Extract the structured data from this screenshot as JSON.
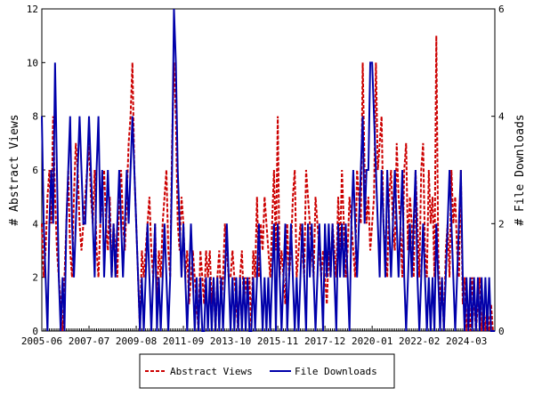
{
  "chart_data": {
    "type": "line",
    "categories": [
      "2005-06",
      null,
      null,
      null,
      null,
      null,
      null,
      null,
      null,
      null,
      null,
      null,
      null,
      null,
      null,
      null,
      null,
      null,
      null,
      null,
      null,
      null,
      null,
      null,
      null,
      "2007-07",
      null,
      null,
      null,
      null,
      null,
      null,
      null,
      null,
      null,
      null,
      null,
      null,
      null,
      null,
      null,
      null,
      null,
      null,
      null,
      null,
      null,
      null,
      null,
      null,
      "2009-08",
      null,
      null,
      null,
      null,
      null,
      null,
      null,
      null,
      null,
      null,
      null,
      null,
      null,
      null,
      null,
      null,
      null,
      null,
      null,
      null,
      null,
      null,
      null,
      null,
      "2011-09",
      null,
      null,
      null,
      null,
      null,
      null,
      null,
      null,
      null,
      null,
      null,
      null,
      null,
      null,
      null,
      null,
      null,
      null,
      null,
      null,
      null,
      null,
      null,
      null,
      "2013-10",
      null,
      null,
      null,
      null,
      null,
      null,
      null,
      null,
      null,
      null,
      null,
      null,
      null,
      null,
      null,
      null,
      null,
      null,
      null,
      null,
      null,
      null,
      null,
      null,
      "2015-11",
      null,
      null,
      null,
      null,
      null,
      null,
      null,
      null,
      null,
      null,
      null,
      null,
      null,
      null,
      null,
      null,
      null,
      null,
      null,
      null,
      null,
      null,
      null,
      null,
      "2017-12",
      null,
      null,
      null,
      null,
      null,
      null,
      null,
      null,
      null,
      null,
      null,
      null,
      null,
      null,
      null,
      null,
      null,
      null,
      null,
      null,
      null,
      null,
      null,
      null,
      "2020-01",
      null,
      null,
      null,
      null,
      null,
      null,
      null,
      null,
      null,
      null,
      null,
      null,
      null,
      null,
      null,
      null,
      null,
      null,
      null,
      null,
      null,
      null,
      null,
      null,
      "2022-02",
      null,
      null,
      null,
      null,
      null,
      null,
      null,
      null,
      null,
      null,
      null,
      null,
      null,
      null,
      null,
      null,
      null,
      null,
      null,
      null,
      null,
      null,
      null,
      null,
      "2024-03",
      null,
      null,
      null,
      null,
      null,
      null,
      null,
      null,
      null,
      null,
      null,
      null,
      null,
      null,
      null
    ],
    "series": [
      {
        "name": "Abstract Views",
        "color": "#cc0000",
        "dash": true,
        "values": [
          4,
          2,
          3,
          5,
          6,
          4,
          8,
          5,
          3,
          2,
          1,
          0,
          2,
          4,
          6,
          3,
          2,
          5,
          7,
          6,
          4,
          3,
          4,
          5,
          6,
          7,
          5,
          4,
          6,
          3,
          2,
          4,
          5,
          6,
          4,
          3,
          5,
          2,
          4,
          3,
          2,
          5,
          6,
          4,
          3,
          5,
          7,
          8,
          10,
          6,
          4,
          2,
          0,
          3,
          2,
          3,
          4,
          5,
          3,
          2,
          4,
          1,
          3,
          2,
          4,
          5,
          6,
          3,
          2,
          7,
          10,
          8,
          4,
          3,
          5,
          4,
          2,
          3,
          1,
          2,
          3,
          2,
          1,
          0,
          3,
          2,
          1,
          3,
          2,
          3,
          1,
          2,
          0,
          2,
          3,
          1,
          2,
          4,
          3,
          2,
          2,
          3,
          2,
          1,
          0,
          2,
          3,
          1,
          2,
          1,
          2,
          0,
          3,
          2,
          5,
          2,
          4,
          3,
          5,
          4,
          3,
          2,
          4,
          6,
          3,
          8,
          2,
          3,
          2,
          1,
          4,
          2,
          3,
          5,
          6,
          2,
          3,
          4,
          3,
          2,
          6,
          5,
          4,
          3,
          2,
          5,
          4,
          3,
          2,
          3,
          2,
          1,
          3,
          2,
          4,
          3,
          2,
          5,
          3,
          6,
          4,
          2,
          3,
          5,
          4,
          3,
          2,
          6,
          5,
          4,
          10,
          6,
          4,
          5,
          3,
          4,
          5,
          10,
          6,
          7,
          8,
          4,
          3,
          2,
          5,
          6,
          4,
          3,
          7,
          5,
          4,
          2,
          6,
          7,
          3,
          5,
          4,
          2,
          6,
          4,
          2,
          6,
          7,
          3,
          2,
          6,
          4,
          5,
          2,
          11,
          3,
          1,
          2,
          0,
          3,
          4,
          2,
          6,
          4,
          5,
          3,
          2,
          6,
          1,
          2,
          0,
          1,
          0,
          2,
          1,
          0,
          1,
          2,
          0,
          1,
          0,
          1,
          0,
          1,
          0,
          0
        ]
      },
      {
        "name": "File Downloads",
        "color": "#0000aa",
        "axis": "y2",
        "values": [
          4,
          2,
          1,
          0,
          2,
          3,
          2,
          5,
          3,
          1,
          0,
          1,
          0,
          2,
          3,
          4,
          2,
          1,
          2,
          3,
          4,
          3,
          2,
          2,
          3,
          4,
          3,
          2,
          1,
          3,
          4,
          2,
          3,
          1,
          2,
          3,
          2,
          1,
          2,
          1,
          2,
          3,
          2,
          1,
          2,
          3,
          2,
          3,
          4,
          3,
          2,
          1,
          0,
          1,
          0,
          1,
          2,
          1,
          0,
          1,
          2,
          0,
          1,
          0,
          1,
          2,
          1,
          0,
          1,
          3,
          6,
          5,
          3,
          2,
          1,
          2,
          1,
          0,
          1,
          2,
          1,
          0,
          1,
          0,
          1,
          0,
          0,
          1,
          0,
          1,
          0,
          1,
          0,
          1,
          0,
          1,
          0,
          1,
          2,
          1,
          0,
          1,
          0,
          1,
          0,
          1,
          0,
          1,
          0,
          1,
          0,
          0,
          1,
          0,
          1,
          2,
          1,
          0,
          1,
          0,
          1,
          0,
          1,
          2,
          0,
          2,
          1,
          0,
          1,
          2,
          0,
          1,
          2,
          1,
          0,
          1,
          0,
          1,
          2,
          1,
          0,
          2,
          1,
          2,
          1,
          0,
          1,
          2,
          1,
          0,
          2,
          1,
          2,
          1,
          2,
          1,
          0,
          2,
          1,
          2,
          1,
          2,
          1,
          0,
          2,
          3,
          2,
          1,
          2,
          3,
          4,
          2,
          3,
          3,
          5,
          5,
          4,
          3,
          2,
          1,
          3,
          2,
          1,
          3,
          2,
          1,
          2,
          3,
          2,
          1,
          2,
          3,
          1,
          0,
          1,
          2,
          1,
          2,
          3,
          1,
          0,
          1,
          2,
          1,
          0,
          1,
          0,
          1,
          0,
          2,
          1,
          0,
          1,
          0,
          1,
          2,
          3,
          2,
          1,
          0,
          1,
          2,
          3,
          1,
          0,
          1,
          0,
          1,
          0,
          1,
          0,
          1,
          0,
          1,
          0,
          1,
          0,
          1,
          0,
          0,
          0
        ]
      }
    ],
    "ylabel": "# Abstract Views",
    "y2label": "# File Downloads",
    "ylim": [
      0,
      12
    ],
    "yticks": [
      0,
      2,
      4,
      6,
      8,
      10,
      12
    ],
    "y2lim": [
      0,
      6
    ],
    "y2ticks": [
      0,
      2,
      4,
      6
    ],
    "legend": "bottom"
  }
}
